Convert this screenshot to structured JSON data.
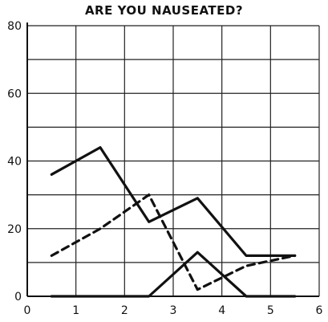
{
  "chart_data": {
    "type": "line",
    "title": "ARE YOU NAUSEATED?",
    "xlabel": "",
    "ylabel": "",
    "xlim": [
      0,
      6
    ],
    "ylim": [
      0,
      80
    ],
    "x_ticks": [
      "0",
      "1",
      "2",
      "3",
      "4",
      "5",
      "6"
    ],
    "y_ticks": [
      "0",
      "20",
      "40",
      "60",
      "80"
    ],
    "grid": true,
    "legend": "none",
    "series": [
      {
        "style": "solid",
        "color": "#111111",
        "x": [
          0.5,
          1.5,
          2.5,
          3.5,
          4.5,
          5.5
        ],
        "y": [
          36,
          44,
          22,
          29,
          12,
          12
        ]
      },
      {
        "style": "dashed",
        "color": "#111111",
        "x": [
          0.5,
          1.5,
          2.5,
          3.5,
          4.5,
          5.5
        ],
        "y": [
          12,
          20,
          30,
          2,
          9,
          12
        ]
      },
      {
        "style": "solid",
        "color": "#111111",
        "x": [
          0.5,
          1.5,
          2.5,
          3.5,
          4.5,
          5.5
        ],
        "y": [
          0,
          0,
          0,
          13,
          0,
          0
        ]
      }
    ]
  }
}
